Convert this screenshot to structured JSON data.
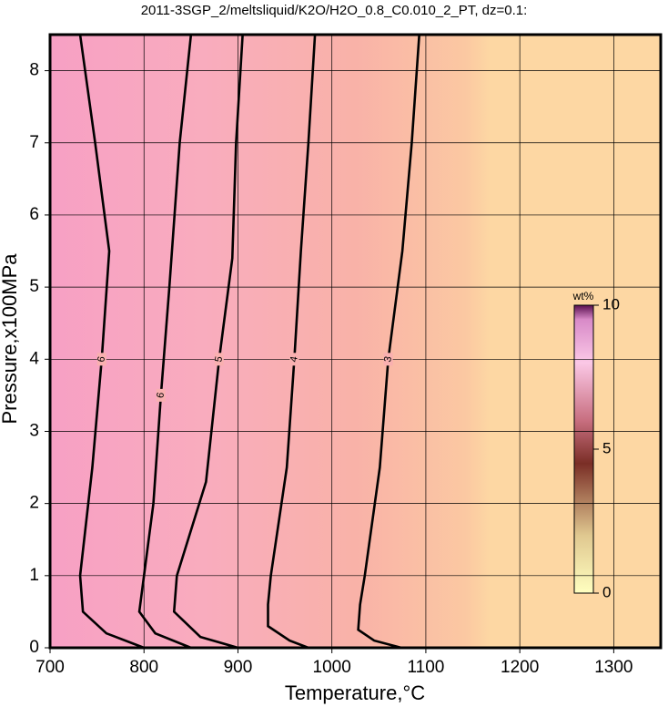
{
  "chart_data": {
    "type": "contour",
    "title": "2011-3SGP_2/meltsliquid/K2O/H2O_0.8_C0.010_2_PT, dz=0.1:",
    "x_label": "Temperature,°C",
    "y_label": "Pressure,x100MPa",
    "xlim": [
      700,
      1350
    ],
    "xticks": [
      700,
      800,
      900,
      1000,
      1100,
      1200,
      1300
    ],
    "ylim": [
      0,
      8.5
    ],
    "yticks": [
      0,
      1,
      2,
      3,
      4,
      5,
      6,
      7,
      8
    ],
    "grid": true,
    "contours": [
      {
        "level": 6,
        "x": [
          800,
          760,
          735,
          732,
          745,
          755,
          763,
          748,
          732
        ],
        "y": [
          0,
          0.2,
          0.5,
          1,
          2.5,
          4,
          5.5,
          7,
          8.5
        ]
      },
      {
        "level": 6,
        "x": [
          850,
          812,
          795,
          800,
          810,
          818,
          827,
          838,
          850
        ],
        "y": [
          0,
          0.2,
          0.5,
          1,
          2,
          3.5,
          5,
          7,
          8.5
        ]
      },
      {
        "level": 5,
        "x": [
          900,
          860,
          832,
          835,
          866,
          880,
          894,
          898,
          905
        ],
        "y": [
          0,
          0.15,
          0.5,
          1,
          2.3,
          4,
          5.4,
          7,
          8.5
        ]
      },
      {
        "level": 4,
        "x": [
          975,
          955,
          932,
          932,
          935,
          952,
          960,
          967,
          975,
          982
        ],
        "y": [
          0,
          0.1,
          0.3,
          0.6,
          1,
          2.5,
          4,
          5.5,
          7,
          8.5
        ]
      },
      {
        "level": 3,
        "x": [
          1074,
          1045,
          1028,
          1030,
          1035,
          1051,
          1060,
          1075,
          1085,
          1093
        ],
        "y": [
          0,
          0.1,
          0.25,
          0.6,
          1,
          2.5,
          4,
          5.5,
          7,
          8.5
        ]
      }
    ],
    "colorbar": {
      "label": "wt%",
      "lim": [
        0,
        10
      ],
      "ticks": [
        0,
        5,
        10
      ]
    }
  }
}
